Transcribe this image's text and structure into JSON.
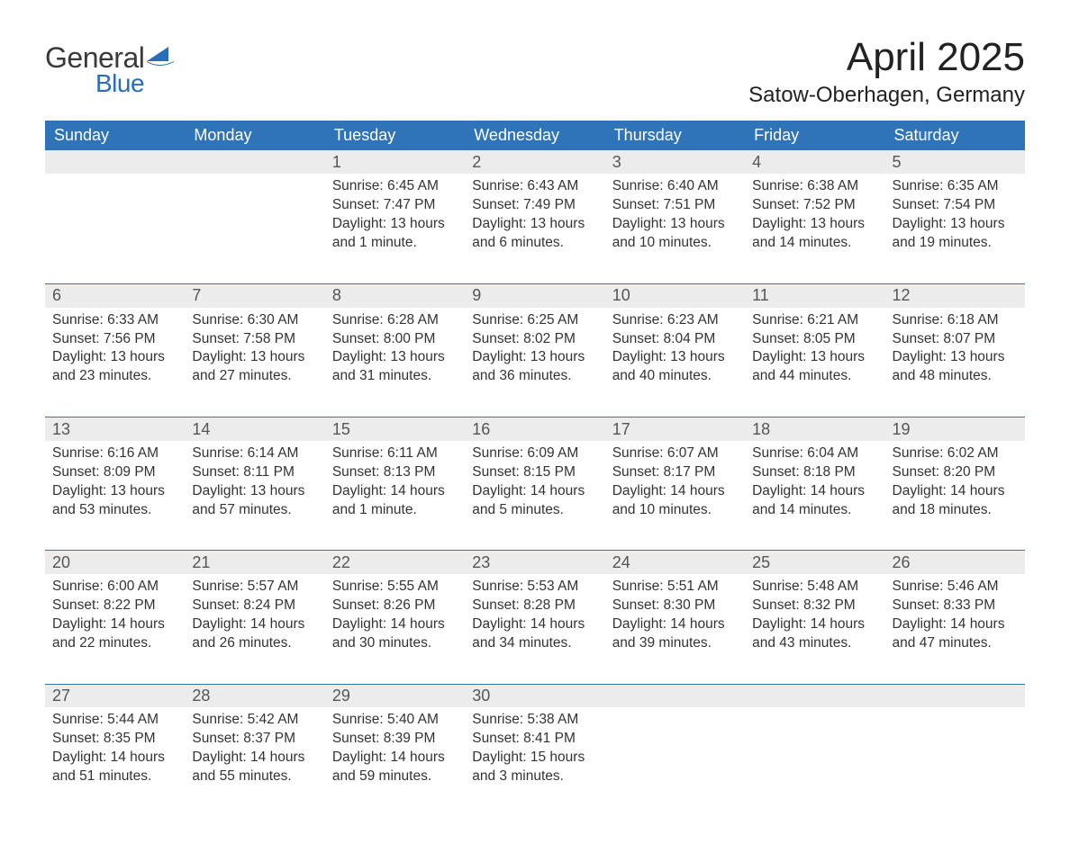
{
  "brand": {
    "word1": "General",
    "word2": "Blue",
    "accent_color": "#2a6db8"
  },
  "title": "April 2025",
  "location": "Satow-Oberhagen, Germany",
  "colors": {
    "header_bg": "#2f73b8",
    "header_text": "#ffffff",
    "daynum_bg": "#ececec",
    "week_divider": "#2f73b8",
    "body_text": "#333333"
  },
  "day_headers": [
    "Sunday",
    "Monday",
    "Tuesday",
    "Wednesday",
    "Thursday",
    "Friday",
    "Saturday"
  ],
  "weeks": [
    [
      null,
      null,
      {
        "n": "1",
        "sunrise": "Sunrise: 6:45 AM",
        "sunset": "Sunset: 7:47 PM",
        "day1": "Daylight: 13 hours",
        "day2": "and 1 minute."
      },
      {
        "n": "2",
        "sunrise": "Sunrise: 6:43 AM",
        "sunset": "Sunset: 7:49 PM",
        "day1": "Daylight: 13 hours",
        "day2": "and 6 minutes."
      },
      {
        "n": "3",
        "sunrise": "Sunrise: 6:40 AM",
        "sunset": "Sunset: 7:51 PM",
        "day1": "Daylight: 13 hours",
        "day2": "and 10 minutes."
      },
      {
        "n": "4",
        "sunrise": "Sunrise: 6:38 AM",
        "sunset": "Sunset: 7:52 PM",
        "day1": "Daylight: 13 hours",
        "day2": "and 14 minutes."
      },
      {
        "n": "5",
        "sunrise": "Sunrise: 6:35 AM",
        "sunset": "Sunset: 7:54 PM",
        "day1": "Daylight: 13 hours",
        "day2": "and 19 minutes."
      }
    ],
    [
      {
        "n": "6",
        "sunrise": "Sunrise: 6:33 AM",
        "sunset": "Sunset: 7:56 PM",
        "day1": "Daylight: 13 hours",
        "day2": "and 23 minutes."
      },
      {
        "n": "7",
        "sunrise": "Sunrise: 6:30 AM",
        "sunset": "Sunset: 7:58 PM",
        "day1": "Daylight: 13 hours",
        "day2": "and 27 minutes."
      },
      {
        "n": "8",
        "sunrise": "Sunrise: 6:28 AM",
        "sunset": "Sunset: 8:00 PM",
        "day1": "Daylight: 13 hours",
        "day2": "and 31 minutes."
      },
      {
        "n": "9",
        "sunrise": "Sunrise: 6:25 AM",
        "sunset": "Sunset: 8:02 PM",
        "day1": "Daylight: 13 hours",
        "day2": "and 36 minutes."
      },
      {
        "n": "10",
        "sunrise": "Sunrise: 6:23 AM",
        "sunset": "Sunset: 8:04 PM",
        "day1": "Daylight: 13 hours",
        "day2": "and 40 minutes."
      },
      {
        "n": "11",
        "sunrise": "Sunrise: 6:21 AM",
        "sunset": "Sunset: 8:05 PM",
        "day1": "Daylight: 13 hours",
        "day2": "and 44 minutes."
      },
      {
        "n": "12",
        "sunrise": "Sunrise: 6:18 AM",
        "sunset": "Sunset: 8:07 PM",
        "day1": "Daylight: 13 hours",
        "day2": "and 48 minutes."
      }
    ],
    [
      {
        "n": "13",
        "sunrise": "Sunrise: 6:16 AM",
        "sunset": "Sunset: 8:09 PM",
        "day1": "Daylight: 13 hours",
        "day2": "and 53 minutes."
      },
      {
        "n": "14",
        "sunrise": "Sunrise: 6:14 AM",
        "sunset": "Sunset: 8:11 PM",
        "day1": "Daylight: 13 hours",
        "day2": "and 57 minutes."
      },
      {
        "n": "15",
        "sunrise": "Sunrise: 6:11 AM",
        "sunset": "Sunset: 8:13 PM",
        "day1": "Daylight: 14 hours",
        "day2": "and 1 minute."
      },
      {
        "n": "16",
        "sunrise": "Sunrise: 6:09 AM",
        "sunset": "Sunset: 8:15 PM",
        "day1": "Daylight: 14 hours",
        "day2": "and 5 minutes."
      },
      {
        "n": "17",
        "sunrise": "Sunrise: 6:07 AM",
        "sunset": "Sunset: 8:17 PM",
        "day1": "Daylight: 14 hours",
        "day2": "and 10 minutes."
      },
      {
        "n": "18",
        "sunrise": "Sunrise: 6:04 AM",
        "sunset": "Sunset: 8:18 PM",
        "day1": "Daylight: 14 hours",
        "day2": "and 14 minutes."
      },
      {
        "n": "19",
        "sunrise": "Sunrise: 6:02 AM",
        "sunset": "Sunset: 8:20 PM",
        "day1": "Daylight: 14 hours",
        "day2": "and 18 minutes."
      }
    ],
    [
      {
        "n": "20",
        "sunrise": "Sunrise: 6:00 AM",
        "sunset": "Sunset: 8:22 PM",
        "day1": "Daylight: 14 hours",
        "day2": "and 22 minutes."
      },
      {
        "n": "21",
        "sunrise": "Sunrise: 5:57 AM",
        "sunset": "Sunset: 8:24 PM",
        "day1": "Daylight: 14 hours",
        "day2": "and 26 minutes."
      },
      {
        "n": "22",
        "sunrise": "Sunrise: 5:55 AM",
        "sunset": "Sunset: 8:26 PM",
        "day1": "Daylight: 14 hours",
        "day2": "and 30 minutes."
      },
      {
        "n": "23",
        "sunrise": "Sunrise: 5:53 AM",
        "sunset": "Sunset: 8:28 PM",
        "day1": "Daylight: 14 hours",
        "day2": "and 34 minutes."
      },
      {
        "n": "24",
        "sunrise": "Sunrise: 5:51 AM",
        "sunset": "Sunset: 8:30 PM",
        "day1": "Daylight: 14 hours",
        "day2": "and 39 minutes."
      },
      {
        "n": "25",
        "sunrise": "Sunrise: 5:48 AM",
        "sunset": "Sunset: 8:32 PM",
        "day1": "Daylight: 14 hours",
        "day2": "and 43 minutes."
      },
      {
        "n": "26",
        "sunrise": "Sunrise: 5:46 AM",
        "sunset": "Sunset: 8:33 PM",
        "day1": "Daylight: 14 hours",
        "day2": "and 47 minutes."
      }
    ],
    [
      {
        "n": "27",
        "sunrise": "Sunrise: 5:44 AM",
        "sunset": "Sunset: 8:35 PM",
        "day1": "Daylight: 14 hours",
        "day2": "and 51 minutes."
      },
      {
        "n": "28",
        "sunrise": "Sunrise: 5:42 AM",
        "sunset": "Sunset: 8:37 PM",
        "day1": "Daylight: 14 hours",
        "day2": "and 55 minutes."
      },
      {
        "n": "29",
        "sunrise": "Sunrise: 5:40 AM",
        "sunset": "Sunset: 8:39 PM",
        "day1": "Daylight: 14 hours",
        "day2": "and 59 minutes."
      },
      {
        "n": "30",
        "sunrise": "Sunrise: 5:38 AM",
        "sunset": "Sunset: 8:41 PM",
        "day1": "Daylight: 15 hours",
        "day2": "and 3 minutes."
      },
      null,
      null,
      null
    ]
  ]
}
